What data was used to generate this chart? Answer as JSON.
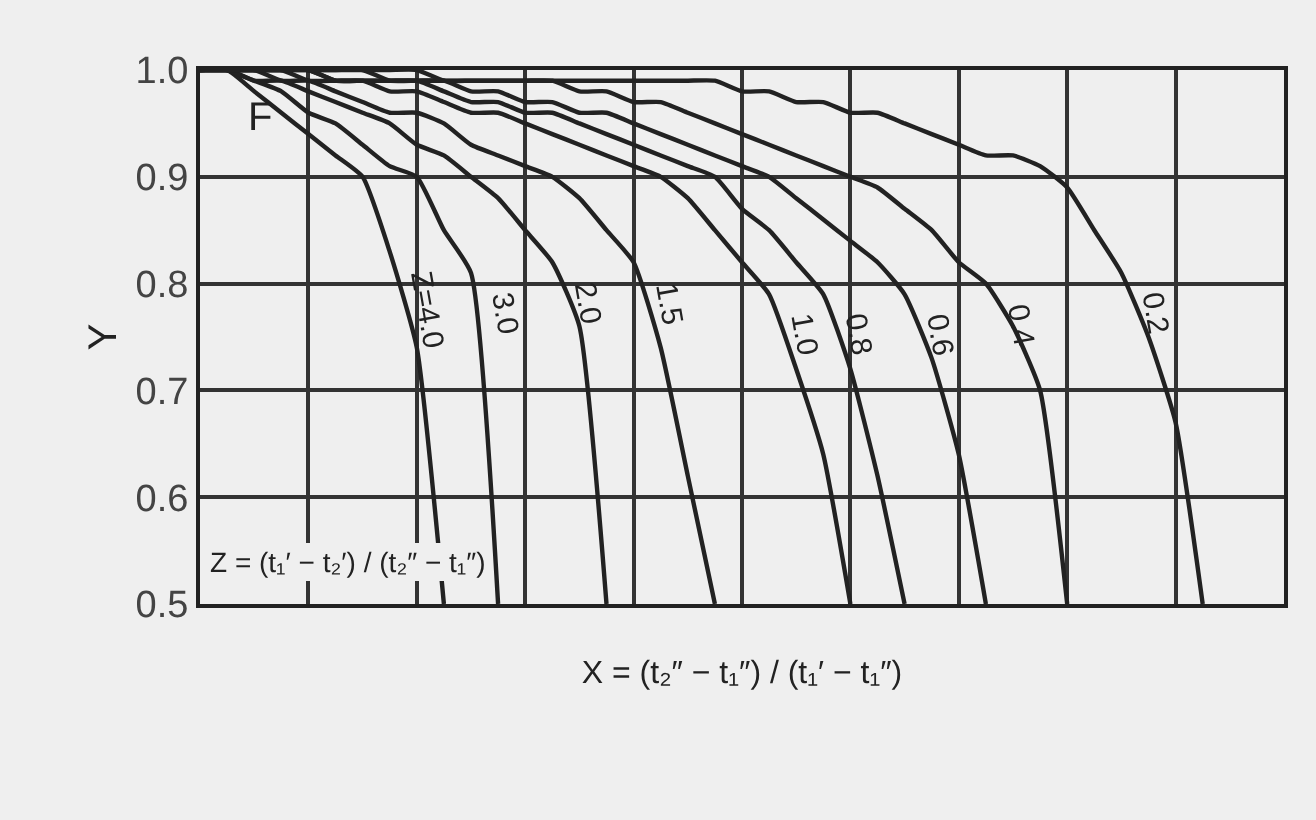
{
  "chart_data": {
    "type": "line",
    "ylabel": "Y",
    "xlabel": "X = (t₂″ − t₁″) / (t₁′ − t₁″)",
    "annotations": [
      "F",
      "Z = (t₁′ − t₂′) / (t₂″ − t₁″)"
    ],
    "categories": [
      null,
      null,
      null,
      null,
      null,
      null,
      null,
      null,
      null,
      null,
      null,
      null,
      null,
      null,
      null,
      null,
      null,
      null,
      null,
      null,
      null,
      null,
      null,
      null,
      null,
      null,
      null,
      null,
      null,
      null,
      null,
      null,
      null,
      null,
      null,
      null,
      null,
      null,
      null,
      null,
      null
    ],
    "ylim": [
      0.5,
      1.0
    ],
    "yticks": [
      {
        "value": 0.5,
        "label": "0.5"
      },
      {
        "value": 0.6,
        "label": "0.6"
      },
      {
        "value": 0.7,
        "label": "0.7"
      },
      {
        "value": 0.8,
        "label": "0.8"
      },
      {
        "value": 0.9,
        "label": "0.9"
      },
      {
        "value": 1.0,
        "label": "1.0"
      }
    ],
    "grid": true,
    "legend": false,
    "marker": "none",
    "line_style": "solid",
    "series": [
      {
        "name": "Z=4.0",
        "color": "#222222",
        "values": [
          1,
          1,
          0.98,
          0.96,
          0.94,
          0.92,
          0.9,
          0.83,
          0.74,
          0.5,
          null,
          null,
          null,
          null,
          null,
          null,
          null,
          null,
          null,
          null,
          null,
          null,
          null,
          null,
          null,
          null,
          null,
          null,
          null,
          null,
          null,
          null,
          null,
          null,
          null,
          null,
          null,
          null,
          null,
          null,
          null
        ]
      },
      {
        "name": "3.0",
        "color": "#222222",
        "values": [
          1,
          1,
          0.99,
          0.98,
          0.96,
          0.95,
          0.93,
          0.91,
          0.9,
          0.85,
          0.81,
          0.5,
          null,
          null,
          null,
          null,
          null,
          null,
          null,
          null,
          null,
          null,
          null,
          null,
          null,
          null,
          null,
          null,
          null,
          null,
          null,
          null,
          null,
          null,
          null,
          null,
          null,
          null,
          null,
          null,
          null
        ]
      },
      {
        "name": "2.0",
        "color": "#222222",
        "values": [
          1,
          1,
          0.99,
          0.99,
          0.98,
          0.97,
          0.96,
          0.95,
          0.93,
          0.92,
          0.9,
          0.88,
          0.85,
          0.82,
          0.76,
          0.5,
          null,
          null,
          null,
          null,
          null,
          null,
          null,
          null,
          null,
          null,
          null,
          null,
          null,
          null,
          null,
          null,
          null,
          null,
          null,
          null,
          null,
          null,
          null,
          null,
          null
        ]
      },
      {
        "name": "1.5",
        "color": "#222222",
        "values": [
          1,
          1,
          1,
          0.99,
          0.99,
          0.98,
          0.97,
          0.96,
          0.96,
          0.95,
          0.93,
          0.92,
          0.91,
          0.9,
          0.88,
          0.85,
          0.82,
          0.74,
          0.62,
          0.5,
          null,
          null,
          null,
          null,
          null,
          null,
          null,
          null,
          null,
          null,
          null,
          null,
          null,
          null,
          null,
          null,
          null,
          null,
          null,
          null,
          null
        ]
      },
      {
        "name": "1.0",
        "color": "#222222",
        "values": [
          1,
          1,
          1,
          1,
          0.99,
          0.99,
          0.99,
          0.98,
          0.98,
          0.97,
          0.96,
          0.96,
          0.95,
          0.94,
          0.93,
          0.92,
          0.91,
          0.9,
          0.88,
          0.85,
          0.82,
          0.79,
          0.72,
          0.64,
          0.5,
          null,
          null,
          null,
          null,
          null,
          null,
          null,
          null,
          null,
          null,
          null,
          null,
          null,
          null,
          null,
          null
        ]
      },
      {
        "name": "0.8",
        "color": "#222222",
        "values": [
          1,
          1,
          1,
          1,
          1,
          0.99,
          0.99,
          0.99,
          0.99,
          0.98,
          0.97,
          0.97,
          0.96,
          0.96,
          0.95,
          0.94,
          0.93,
          0.92,
          0.91,
          0.9,
          0.87,
          0.85,
          0.82,
          0.79,
          0.72,
          0.62,
          0.5,
          null,
          null,
          null,
          null,
          null,
          null,
          null,
          null,
          null,
          null,
          null,
          null,
          null,
          null
        ]
      },
      {
        "name": "0.6",
        "color": "#222222",
        "values": [
          1,
          1,
          1,
          1,
          1,
          0.99,
          0.99,
          0.99,
          0.99,
          0.99,
          0.98,
          0.98,
          0.97,
          0.97,
          0.96,
          0.96,
          0.95,
          0.94,
          0.93,
          0.92,
          0.91,
          0.9,
          0.88,
          0.86,
          0.84,
          0.82,
          0.79,
          0.73,
          0.64,
          0.5,
          null,
          null,
          null,
          null,
          null,
          null,
          null,
          null,
          null,
          null,
          null
        ]
      },
      {
        "name": "0.4",
        "color": "#222222",
        "values": [
          1,
          1,
          1,
          1,
          1,
          1,
          1,
          0.99,
          0.99,
          0.99,
          0.99,
          0.99,
          0.99,
          0.99,
          0.98,
          0.98,
          0.97,
          0.97,
          0.96,
          0.95,
          0.94,
          0.93,
          0.92,
          0.91,
          0.9,
          0.89,
          0.87,
          0.85,
          0.82,
          0.8,
          0.76,
          0.7,
          0.5,
          null,
          null,
          null,
          null,
          null,
          null,
          null,
          null
        ]
      },
      {
        "name": "0.2",
        "color": "#222222",
        "values": [
          1,
          1,
          1,
          1,
          1,
          1,
          1,
          1,
          1,
          0.99,
          0.99,
          0.99,
          0.99,
          0.99,
          0.99,
          0.99,
          0.99,
          0.99,
          0.99,
          0.99,
          0.98,
          0.98,
          0.97,
          0.97,
          0.96,
          0.96,
          0.95,
          0.94,
          0.93,
          0.92,
          0.92,
          0.91,
          0.89,
          0.85,
          0.81,
          0.75,
          0.67,
          0.5,
          null,
          null,
          null
        ]
      }
    ]
  }
}
